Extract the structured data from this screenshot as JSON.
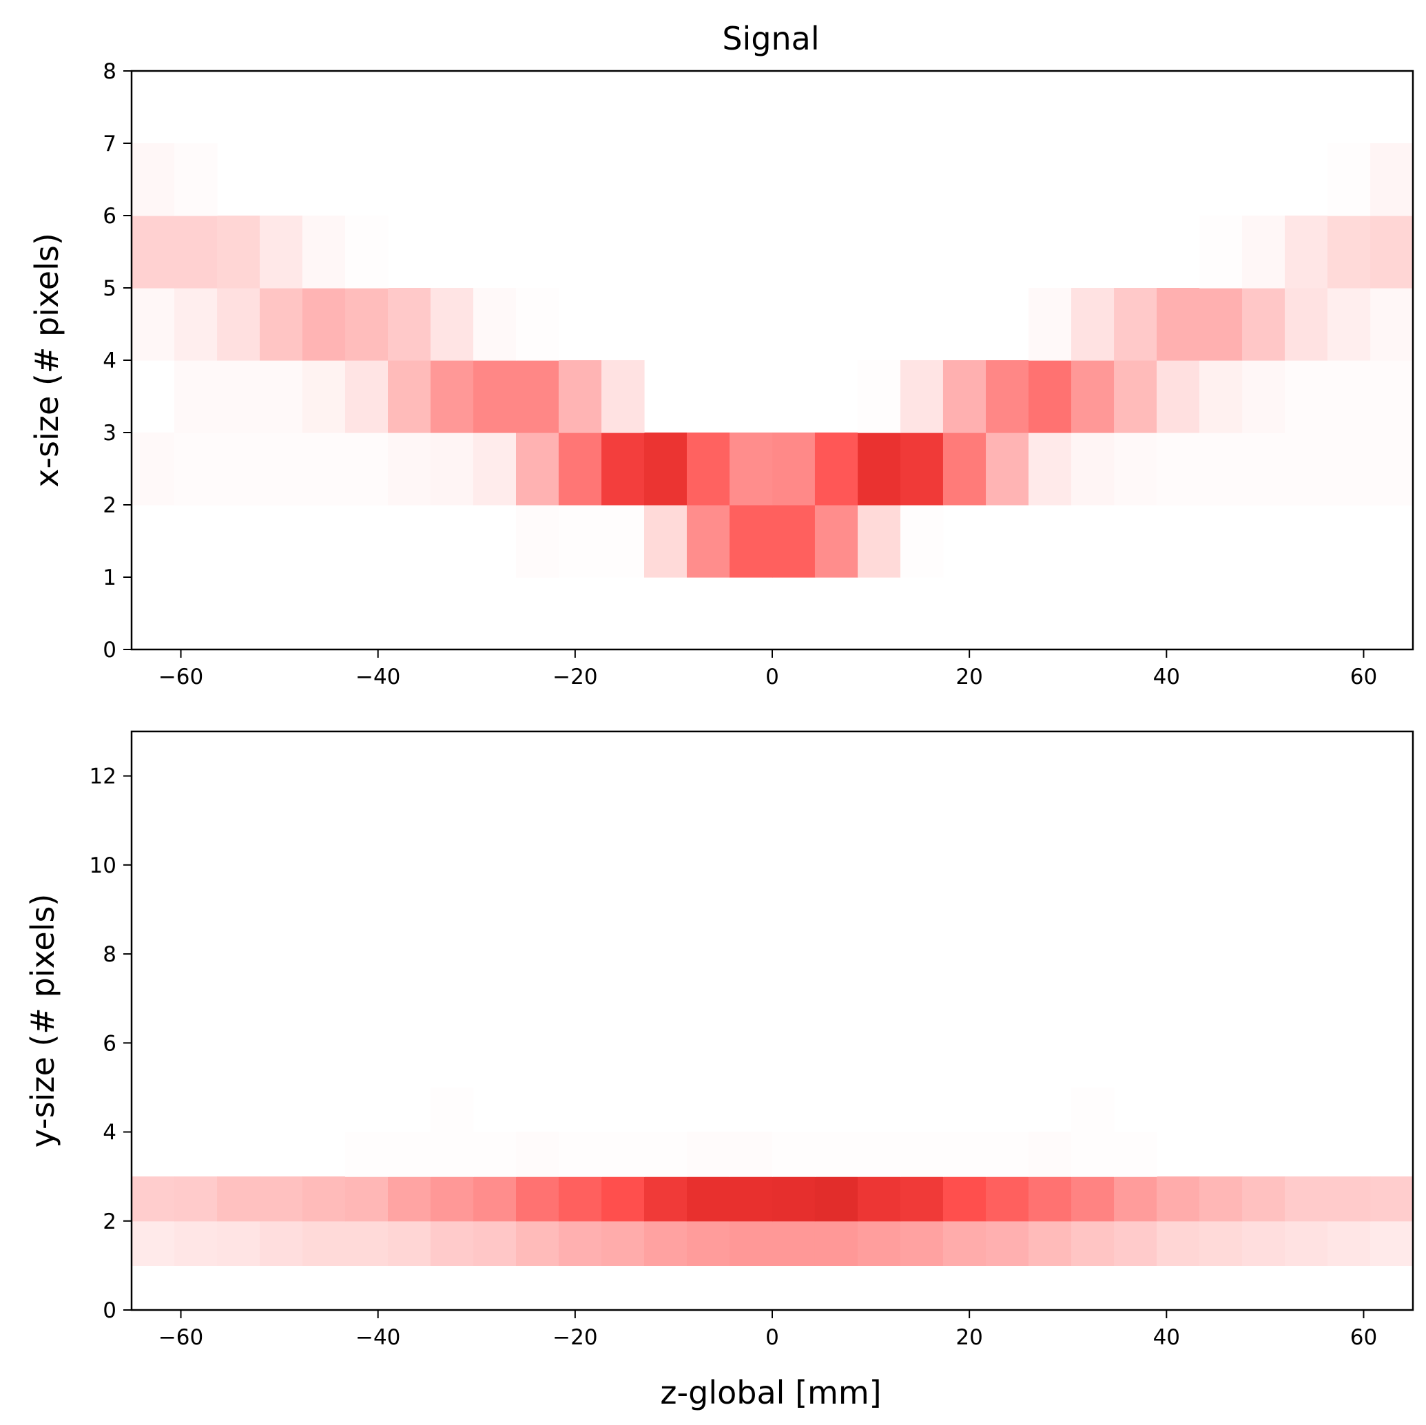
{
  "figure": {
    "title": "Signal",
    "xlabel": "z-global [mm]"
  },
  "chart_data": [
    {
      "type": "heatmap",
      "title": "Signal",
      "xlabel": "",
      "ylabel": "x-size (# pixels)",
      "xlim": [
        -65,
        65
      ],
      "ylim": [
        0,
        8
      ],
      "xticks": [
        -60,
        -40,
        -20,
        0,
        20,
        40,
        60
      ],
      "yticks": [
        0,
        1,
        2,
        3,
        4,
        5,
        6,
        7,
        8
      ],
      "xtick_labels": [
        "−60",
        "−40",
        "−20",
        "0",
        "20",
        "40",
        "60"
      ],
      "ytick_labels": [
        "0",
        "1",
        "2",
        "3",
        "4",
        "5",
        "6",
        "7",
        "8"
      ],
      "colormap": "white-to-red",
      "color_low": "#ffffff",
      "color_high": "#e8302e",
      "x_edges": [
        -65,
        -60.67,
        -56.33,
        -52,
        -47.67,
        -43.33,
        -39,
        -34.67,
        -30.33,
        -26,
        -21.67,
        -17.33,
        -13,
        -8.67,
        -4.33,
        0,
        4.33,
        8.67,
        13,
        17.33,
        21.67,
        26,
        30.33,
        34.67,
        39,
        43.33,
        47.67,
        52,
        56.33,
        60.67,
        65
      ],
      "y_edges": [
        0,
        1,
        2,
        3,
        4,
        5,
        6,
        7,
        8
      ],
      "values": [
        [
          0,
          0,
          0,
          0,
          0,
          0,
          0,
          0,
          0,
          0,
          0,
          0,
          0,
          0,
          0,
          0,
          0,
          0,
          0,
          0,
          0,
          0,
          0,
          0,
          0,
          0,
          0,
          0,
          0,
          0
        ],
        [
          0,
          0,
          0,
          0,
          0,
          0,
          0,
          0,
          0,
          0.02,
          0.01,
          0.01,
          0.18,
          0.55,
          0.77,
          0.77,
          0.55,
          0.18,
          0.01,
          0,
          0,
          0,
          0,
          0,
          0,
          0,
          0,
          0,
          0,
          0
        ],
        [
          0.03,
          0.02,
          0.02,
          0.02,
          0.02,
          0.02,
          0.04,
          0.05,
          0.09,
          0.37,
          0.66,
          0.93,
          0.98,
          0.76,
          0.55,
          0.57,
          0.81,
          0.99,
          0.95,
          0.64,
          0.36,
          0.1,
          0.05,
          0.03,
          0.02,
          0.02,
          0.02,
          0.02,
          0.02,
          0.02
        ],
        [
          0,
          0.03,
          0.03,
          0.03,
          0.06,
          0.13,
          0.33,
          0.5,
          0.58,
          0.58,
          0.36,
          0.14,
          0,
          0,
          0,
          0,
          0,
          0.01,
          0.13,
          0.38,
          0.58,
          0.68,
          0.5,
          0.33,
          0.15,
          0.07,
          0.04,
          0.02,
          0.02,
          0.02
        ],
        [
          0.04,
          0.08,
          0.15,
          0.28,
          0.36,
          0.32,
          0.26,
          0.13,
          0.03,
          0.01,
          0,
          0,
          0,
          0,
          0,
          0,
          0,
          0,
          0,
          0,
          0,
          0.03,
          0.14,
          0.26,
          0.38,
          0.38,
          0.27,
          0.14,
          0.08,
          0.04
        ],
        [
          0.22,
          0.22,
          0.2,
          0.11,
          0.04,
          0.01,
          0,
          0,
          0,
          0,
          0,
          0,
          0,
          0,
          0,
          0,
          0,
          0,
          0,
          0,
          0,
          0,
          0,
          0,
          0,
          0.01,
          0.04,
          0.12,
          0.18,
          0.2
        ],
        [
          0.04,
          0.02,
          0,
          0,
          0,
          0,
          0,
          0,
          0,
          0,
          0,
          0,
          0,
          0,
          0,
          0,
          0,
          0,
          0,
          0,
          0,
          0,
          0,
          0,
          0,
          0,
          0,
          0,
          0.01,
          0.05
        ],
        [
          0,
          0,
          0,
          0,
          0,
          0,
          0,
          0,
          0,
          0,
          0,
          0,
          0,
          0,
          0,
          0,
          0,
          0,
          0,
          0,
          0,
          0,
          0,
          0,
          0,
          0,
          0,
          0,
          0,
          0
        ]
      ]
    },
    {
      "type": "heatmap",
      "title": "",
      "xlabel": "z-global [mm]",
      "ylabel": "y-size (# pixels)",
      "xlim": [
        -65,
        65
      ],
      "ylim": [
        0,
        13
      ],
      "xticks": [
        -60,
        -40,
        -20,
        0,
        20,
        40,
        60
      ],
      "yticks": [
        0,
        2,
        4,
        6,
        8,
        10,
        12
      ],
      "xtick_labels": [
        "−60",
        "−40",
        "−20",
        "0",
        "20",
        "40",
        "60"
      ],
      "ytick_labels": [
        "0",
        "2",
        "4",
        "6",
        "8",
        "10",
        "12"
      ],
      "colormap": "white-to-red",
      "color_low": "#ffffff",
      "color_high": "#e8302e",
      "x_edges": [
        -65,
        -60.67,
        -56.33,
        -52,
        -47.67,
        -43.33,
        -39,
        -34.67,
        -30.33,
        -26,
        -21.67,
        -17.33,
        -13,
        -8.67,
        -4.33,
        0,
        4.33,
        8.67,
        13,
        17.33,
        21.67,
        26,
        30.33,
        34.67,
        39,
        43.33,
        47.67,
        52,
        56.33,
        60.67,
        65
      ],
      "y_edges": [
        0,
        1,
        2,
        3,
        4,
        5
      ],
      "values": [
        [
          0,
          0,
          0,
          0,
          0,
          0,
          0,
          0,
          0,
          0,
          0,
          0,
          0,
          0,
          0,
          0,
          0,
          0,
          0,
          0,
          0,
          0,
          0,
          0,
          0,
          0,
          0,
          0,
          0,
          0
        ],
        [
          0.1,
          0.12,
          0.13,
          0.16,
          0.18,
          0.18,
          0.2,
          0.25,
          0.27,
          0.33,
          0.38,
          0.4,
          0.45,
          0.48,
          0.5,
          0.5,
          0.5,
          0.47,
          0.45,
          0.4,
          0.38,
          0.33,
          0.28,
          0.25,
          0.2,
          0.18,
          0.16,
          0.14,
          0.12,
          0.1
        ],
        [
          0.24,
          0.25,
          0.3,
          0.3,
          0.33,
          0.35,
          0.44,
          0.5,
          0.55,
          0.68,
          0.77,
          0.85,
          0.95,
          1.0,
          1.0,
          1.02,
          1.05,
          0.97,
          0.95,
          0.85,
          0.77,
          0.68,
          0.6,
          0.48,
          0.4,
          0.35,
          0.3,
          0.25,
          0.25,
          0.24
        ],
        [
          0,
          0,
          0,
          0,
          0,
          0.01,
          0.01,
          0.01,
          0.01,
          0.02,
          0.01,
          0.01,
          0.01,
          0.02,
          0.02,
          0.01,
          0.01,
          0.01,
          0.01,
          0.01,
          0.01,
          0.02,
          0.01,
          0.01,
          0,
          0,
          0,
          0,
          0,
          0
        ],
        [
          0,
          0,
          0,
          0,
          0,
          0,
          0,
          0.01,
          0,
          0,
          0,
          0,
          0,
          0,
          0,
          0,
          0,
          0,
          0,
          0,
          0,
          0,
          0.01,
          0,
          0,
          0,
          0,
          0,
          0,
          0
        ]
      ]
    }
  ]
}
